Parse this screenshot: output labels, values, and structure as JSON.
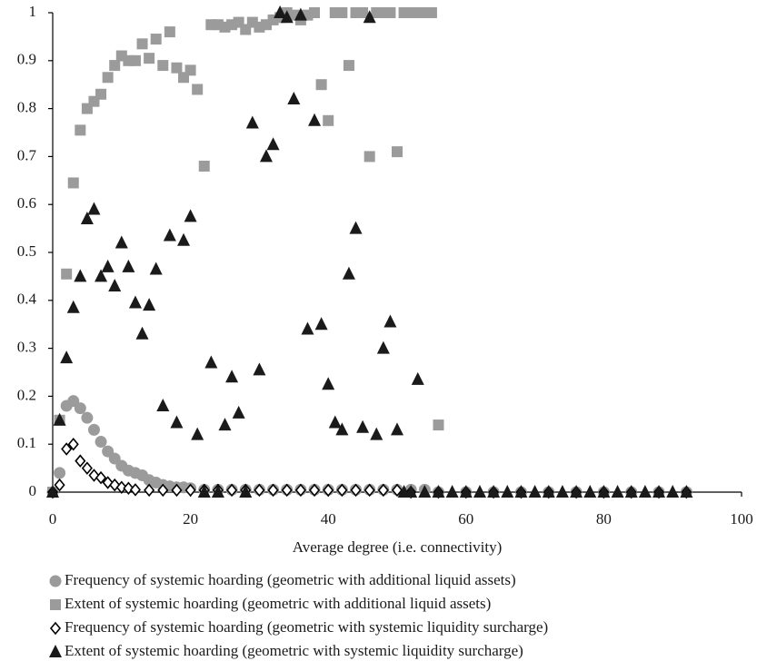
{
  "chart_data": {
    "type": "scatter",
    "x_label": "Average degree (i.e. connectivity)",
    "xlim": [
      0,
      100
    ],
    "xticks": [
      0,
      20,
      40,
      60,
      80,
      100
    ],
    "ylim": [
      0,
      1
    ],
    "yticks": [
      0,
      0.1,
      0.2,
      0.3,
      0.4,
      0.5,
      0.6,
      0.7,
      0.8,
      0.9,
      1
    ],
    "grid": false,
    "series": [
      {
        "name": "Frequency of systemic hoarding (geometric with additional liquid assets)",
        "color": "#9b9b9b",
        "marker": "circle",
        "x": [
          0,
          1,
          2,
          3,
          4,
          5,
          6,
          7,
          8,
          9,
          10,
          11,
          12,
          13,
          14,
          15,
          16,
          17,
          18,
          19,
          20,
          22,
          24,
          26,
          28,
          30,
          32,
          34,
          36,
          38,
          40,
          42,
          44,
          46,
          48,
          50,
          52,
          54,
          56,
          60,
          64,
          68,
          72,
          76,
          80,
          84,
          88,
          92
        ],
        "values": [
          0,
          0.04,
          0.18,
          0.19,
          0.175,
          0.155,
          0.13,
          0.105,
          0.085,
          0.07,
          0.055,
          0.045,
          0.04,
          0.035,
          0.025,
          0.02,
          0.015,
          0.012,
          0.01,
          0.01,
          0.008,
          0.005,
          0.005,
          0.005,
          0.005,
          0.005,
          0.005,
          0.005,
          0.005,
          0.005,
          0.005,
          0.005,
          0.005,
          0.005,
          0.005,
          0.005,
          0.005,
          0.005,
          0,
          0,
          0,
          0,
          0,
          0,
          0,
          0,
          0,
          0
        ]
      },
      {
        "name": "Extent of systemic hoarding (geometric with additional liquid assets)",
        "color": "#9b9b9b",
        "marker": "square",
        "x": [
          0,
          1,
          2,
          3,
          4,
          5,
          6,
          7,
          8,
          9,
          10,
          11,
          12,
          13,
          14,
          15,
          16,
          17,
          18,
          19,
          20,
          21,
          22,
          23,
          24,
          25,
          26,
          27,
          28,
          29,
          30,
          31,
          32,
          33,
          34,
          35,
          36,
          37,
          38,
          39,
          40,
          41,
          42,
          43,
          44,
          45,
          46,
          47,
          48,
          49,
          50,
          51,
          52,
          53,
          54,
          55,
          56
        ],
        "values": [
          0,
          0.15,
          0.455,
          0.645,
          0.755,
          0.8,
          0.815,
          0.83,
          0.865,
          0.89,
          0.91,
          0.9,
          0.9,
          0.935,
          0.905,
          0.945,
          0.89,
          0.96,
          0.885,
          0.865,
          0.88,
          0.84,
          0.68,
          0.975,
          0.975,
          0.97,
          0.975,
          0.98,
          0.965,
          0.98,
          0.97,
          0.975,
          0.985,
          0.99,
          1,
          0.995,
          0.985,
          0.995,
          1,
          0.85,
          0.775,
          1,
          1,
          0.89,
          1,
          1,
          0.7,
          1,
          1,
          1,
          0.71,
          1,
          1,
          1,
          1,
          1,
          0.14
        ]
      },
      {
        "name": "Frequency of systemic hoarding (geometric with systemic liquidity surcharge)",
        "color": "#000000",
        "marker": "diamond",
        "x": [
          0,
          1,
          2,
          3,
          4,
          5,
          6,
          7,
          8,
          9,
          10,
          11,
          12,
          14,
          16,
          18,
          20,
          22,
          24,
          26,
          28,
          30,
          32,
          34,
          36,
          38,
          40,
          42,
          44,
          46,
          48,
          50,
          52,
          56,
          60,
          64,
          68,
          72,
          76,
          80,
          84,
          88,
          92
        ],
        "values": [
          0,
          0.015,
          0.09,
          0.1,
          0.065,
          0.05,
          0.035,
          0.03,
          0.02,
          0.015,
          0.01,
          0.008,
          0.005,
          0.004,
          0.004,
          0.004,
          0.004,
          0.004,
          0.004,
          0.004,
          0.004,
          0.004,
          0.004,
          0.004,
          0.004,
          0.004,
          0.004,
          0.004,
          0.004,
          0.004,
          0.004,
          0.004,
          0,
          0,
          0,
          0,
          0,
          0,
          0,
          0,
          0,
          0,
          0
        ]
      },
      {
        "name": "Extent of systemic hoarding (geometric with systemic liquidity surcharge)",
        "color": "#1a1a1a",
        "marker": "triangle",
        "x": [
          0,
          1,
          2,
          3,
          4,
          5,
          6,
          7,
          8,
          9,
          10,
          11,
          12,
          13,
          14,
          15,
          16,
          17,
          18,
          19,
          20,
          21,
          23,
          25,
          26,
          27,
          29,
          30,
          31,
          32,
          33,
          34,
          35,
          36,
          37,
          38,
          39,
          40,
          41,
          42,
          43,
          44,
          45,
          46,
          47,
          48,
          49,
          50,
          53,
          22,
          24,
          28,
          51,
          52,
          54,
          56,
          58,
          60,
          62,
          64,
          66,
          68,
          70,
          72,
          74,
          76,
          78,
          80,
          82,
          84,
          86,
          88,
          90,
          92
        ],
        "values": [
          0,
          0.15,
          0.28,
          0.385,
          0.45,
          0.57,
          0.59,
          0.45,
          0.47,
          0.43,
          0.52,
          0.47,
          0.395,
          0.33,
          0.39,
          0.465,
          0.18,
          0.535,
          0.145,
          0.525,
          0.575,
          0.12,
          0.27,
          0.14,
          0.24,
          0.165,
          0.77,
          0.255,
          0.7,
          0.725,
          1,
          0.99,
          0.82,
          0.995,
          0.34,
          0.775,
          0.35,
          0.225,
          0.145,
          0.13,
          0.455,
          0.55,
          0.135,
          0.99,
          0.12,
          0.3,
          0.355,
          0.13,
          0.235,
          0,
          0,
          0,
          0,
          0,
          0,
          0,
          0,
          0,
          0,
          0,
          0,
          0,
          0,
          0,
          0,
          0,
          0,
          0,
          0,
          0,
          0,
          0,
          0,
          0
        ]
      }
    ]
  }
}
